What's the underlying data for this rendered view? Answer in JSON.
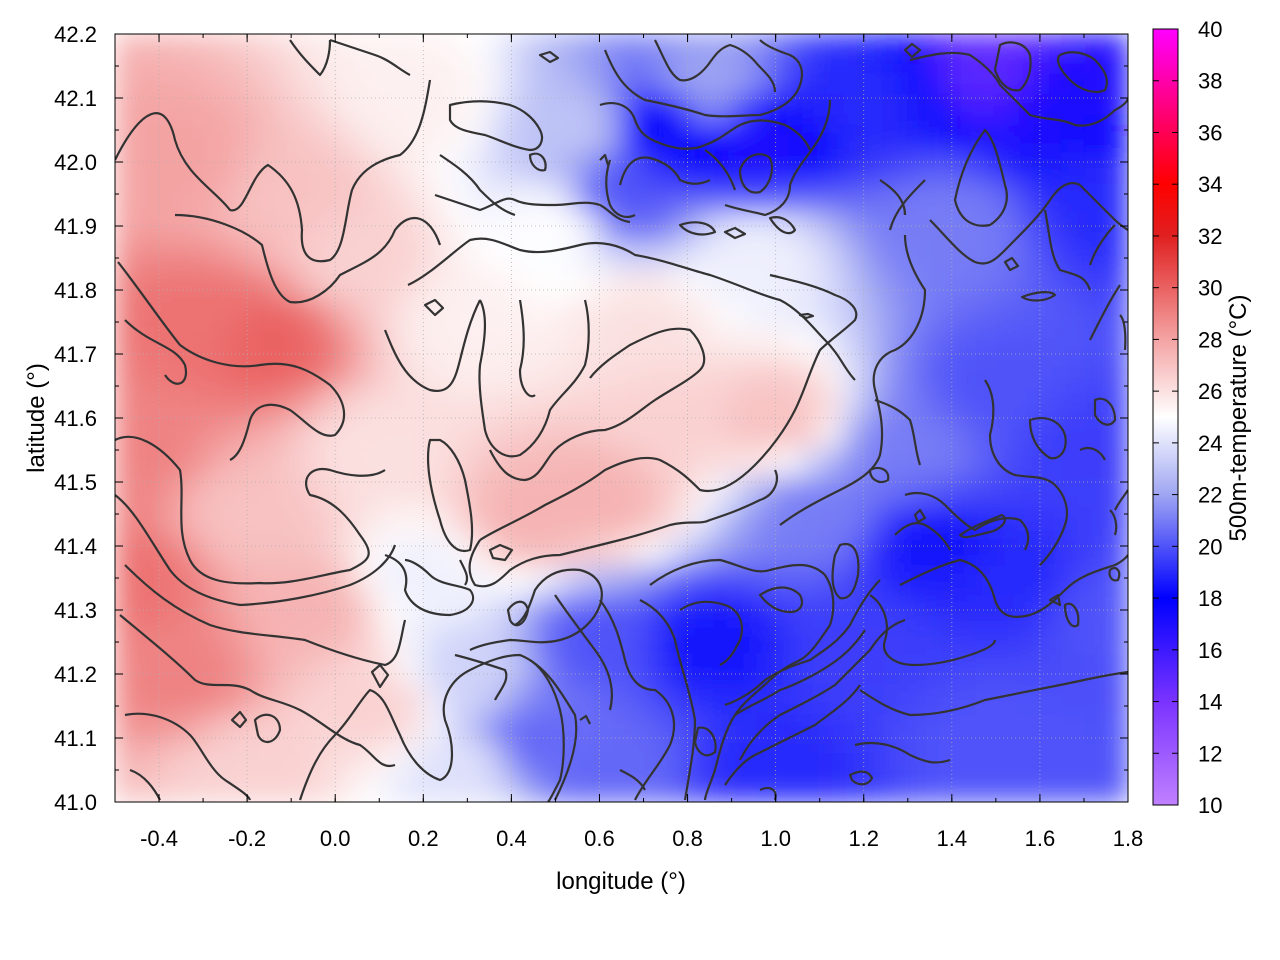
{
  "chart_data": {
    "type": "heatmap",
    "title": "",
    "xlabel": "longitude (°)",
    "ylabel": "latitude (°)",
    "colorbar_label": "500m-temperature (°C)",
    "xlim": [
      -0.5,
      1.8
    ],
    "ylim": [
      41.0,
      42.2
    ],
    "clim": [
      10,
      40
    ],
    "x_ticks": [
      "-0.4",
      "-0.2",
      "0.0",
      "0.2",
      "0.4",
      "0.6",
      "0.8",
      "1.0",
      "1.2",
      "1.4",
      "1.6",
      "1.8"
    ],
    "x_tick_values": [
      -0.4,
      -0.2,
      0.0,
      0.2,
      0.4,
      0.6,
      0.8,
      1.0,
      1.2,
      1.4,
      1.6,
      1.8
    ],
    "y_ticks": [
      "41.0",
      "41.1",
      "41.2",
      "41.3",
      "41.4",
      "41.5",
      "41.6",
      "41.7",
      "41.8",
      "41.9",
      "42.0",
      "42.1",
      "42.2"
    ],
    "y_tick_values": [
      41.0,
      41.1,
      41.2,
      41.3,
      41.4,
      41.5,
      41.6,
      41.7,
      41.8,
      41.9,
      42.0,
      42.1,
      42.2
    ],
    "colorbar_ticks": [
      "10",
      "12",
      "14",
      "16",
      "18",
      "20",
      "22",
      "24",
      "26",
      "28",
      "30",
      "32",
      "34",
      "36",
      "38",
      "40"
    ],
    "colorbar_tick_values": [
      10,
      12,
      14,
      16,
      18,
      20,
      22,
      24,
      26,
      28,
      30,
      32,
      34,
      36,
      38,
      40
    ],
    "colormap": [
      {
        "value": 10,
        "color": "#c080ff"
      },
      {
        "value": 14,
        "color": "#7a33ff"
      },
      {
        "value": 18,
        "color": "#0000ff"
      },
      {
        "value": 22,
        "color": "#9fa6f2"
      },
      {
        "value": 25,
        "color": "#ffffff"
      },
      {
        "value": 28,
        "color": "#f4a3a3"
      },
      {
        "value": 32,
        "color": "#e02020"
      },
      {
        "value": 34,
        "color": "#ff0000"
      },
      {
        "value": 40,
        "color": "#ff00ff"
      }
    ],
    "grid": true,
    "contour_color": "#333333",
    "field_samples": [
      {
        "lon": -0.45,
        "lat": 41.35,
        "temp": 29.5
      },
      {
        "lon": -0.35,
        "lat": 41.2,
        "temp": 29
      },
      {
        "lon": -0.45,
        "lat": 41.55,
        "temp": 29
      },
      {
        "lon": -0.3,
        "lat": 41.75,
        "temp": 29.5
      },
      {
        "lon": -0.15,
        "lat": 41.72,
        "temp": 30
      },
      {
        "lon": -0.35,
        "lat": 42.0,
        "temp": 28
      },
      {
        "lon": -0.1,
        "lat": 41.95,
        "temp": 27
      },
      {
        "lon": -0.2,
        "lat": 41.45,
        "temp": 27
      },
      {
        "lon": -0.05,
        "lat": 41.3,
        "temp": 27.5
      },
      {
        "lon": 0.1,
        "lat": 41.15,
        "temp": 26.5
      },
      {
        "lon": -0.2,
        "lat": 41.05,
        "temp": 26.5
      },
      {
        "lon": 0.1,
        "lat": 41.55,
        "temp": 26
      },
      {
        "lon": 0.05,
        "lat": 41.85,
        "temp": 26.5
      },
      {
        "lon": 0.2,
        "lat": 42.1,
        "temp": 25.5
      },
      {
        "lon": 0.3,
        "lat": 41.75,
        "temp": 25.5
      },
      {
        "lon": 0.45,
        "lat": 41.45,
        "temp": 27.5
      },
      {
        "lon": 0.6,
        "lat": 41.48,
        "temp": 27.5
      },
      {
        "lon": 0.75,
        "lat": 41.6,
        "temp": 26.5
      },
      {
        "lon": 0.7,
        "lat": 41.75,
        "temp": 26
      },
      {
        "lon": 1.0,
        "lat": 41.6,
        "temp": 27
      },
      {
        "lon": 0.5,
        "lat": 41.9,
        "temp": 25
      },
      {
        "lon": 0.95,
        "lat": 41.85,
        "temp": 24.5
      },
      {
        "lon": 0.55,
        "lat": 42.05,
        "temp": 23
      },
      {
        "lon": 0.85,
        "lat": 42.12,
        "temp": 22
      },
      {
        "lon": 0.75,
        "lat": 42.05,
        "temp": 18
      },
      {
        "lon": 0.95,
        "lat": 42.03,
        "temp": 17
      },
      {
        "lon": 0.65,
        "lat": 41.95,
        "temp": 20
      },
      {
        "lon": 1.2,
        "lat": 42.1,
        "temp": 19
      },
      {
        "lon": 1.5,
        "lat": 42.15,
        "temp": 15
      },
      {
        "lon": 1.65,
        "lat": 42.1,
        "temp": 17
      },
      {
        "lon": 1.75,
        "lat": 41.95,
        "temp": 19
      },
      {
        "lon": 1.4,
        "lat": 41.9,
        "temp": 21
      },
      {
        "lon": 1.5,
        "lat": 41.65,
        "temp": 20
      },
      {
        "lon": 1.7,
        "lat": 41.55,
        "temp": 19.5
      },
      {
        "lon": 1.3,
        "lat": 41.55,
        "temp": 21
      },
      {
        "lon": 1.35,
        "lat": 41.4,
        "temp": 18.5
      },
      {
        "lon": 1.55,
        "lat": 41.35,
        "temp": 19
      },
      {
        "lon": 1.75,
        "lat": 41.3,
        "temp": 20
      },
      {
        "lon": 1.5,
        "lat": 41.1,
        "temp": 20
      },
      {
        "lon": 1.2,
        "lat": 41.25,
        "temp": 19.5
      },
      {
        "lon": 1.0,
        "lat": 41.05,
        "temp": 19
      },
      {
        "lon": 0.85,
        "lat": 41.25,
        "temp": 18.5
      },
      {
        "lon": 0.6,
        "lat": 41.25,
        "temp": 20
      },
      {
        "lon": 0.45,
        "lat": 41.1,
        "temp": 20.5
      },
      {
        "lon": 0.3,
        "lat": 41.2,
        "temp": 23.5
      },
      {
        "lon": 0.2,
        "lat": 41.35,
        "temp": 24.5
      },
      {
        "lon": 0.3,
        "lat": 41.05,
        "temp": 24
      },
      {
        "lon": 0.6,
        "lat": 41.05,
        "temp": 20.5
      },
      {
        "lon": 1.1,
        "lat": 41.45,
        "temp": 21
      }
    ]
  }
}
